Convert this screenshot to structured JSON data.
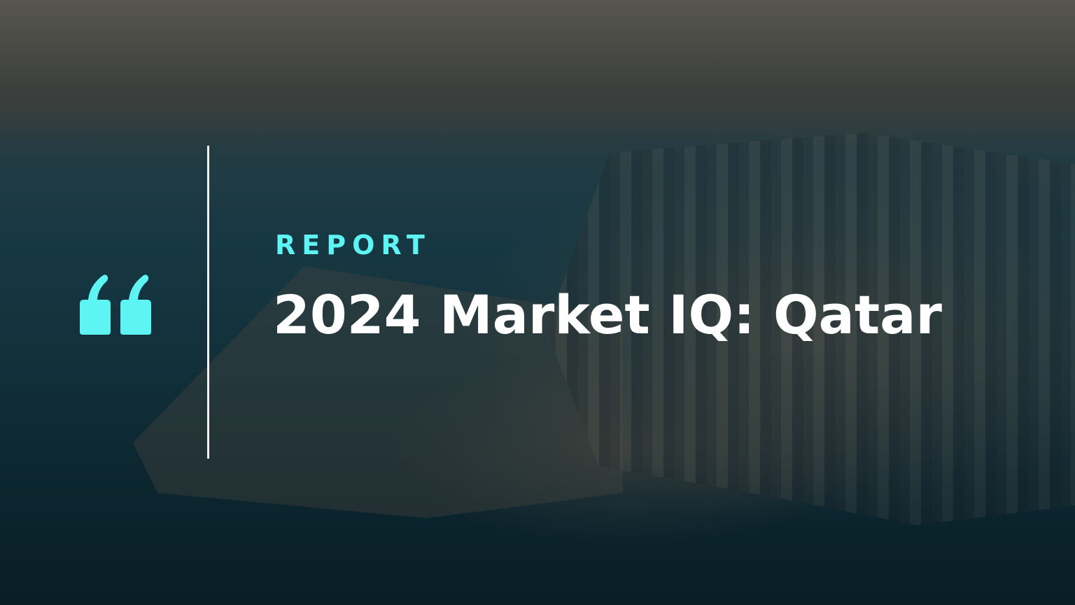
{
  "hero": {
    "kicker": "REPORT",
    "title": "2024 Market IQ: Qatar",
    "icon": "quote-mark-icon",
    "accent_color": "#5ef4f4",
    "title_color": "#ffffff",
    "background": "aerial photo of Doha skyline and bay"
  }
}
